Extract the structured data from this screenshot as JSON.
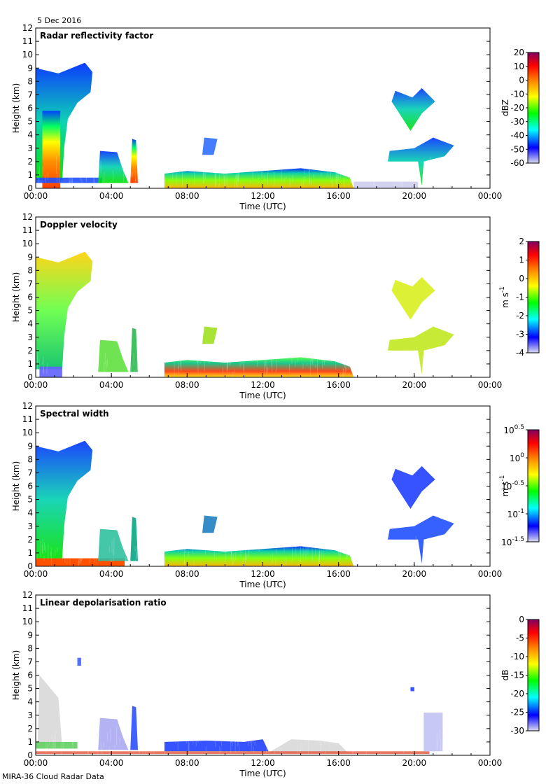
{
  "page": {
    "date": "5 Dec 2016",
    "footer": "MIRA-36 Cloud Radar Data"
  },
  "chart_data": [
    {
      "type": "heatmap",
      "title": "Radar reflectivity factor",
      "xlabel": "Time (UTC)",
      "ylabel": "Height (km)",
      "xlim": [
        "00:00",
        "00:00"
      ],
      "x_ticks": [
        "00:00",
        "04:00",
        "08:00",
        "12:00",
        "16:00",
        "20:00",
        "00:00"
      ],
      "ylim": [
        0,
        12
      ],
      "y_ticks": [
        "0",
        "1",
        "2",
        "3",
        "4",
        "5",
        "6",
        "7",
        "8",
        "9",
        "10",
        "11",
        "12"
      ],
      "colorbar": {
        "unit": "dBZ",
        "min": -60,
        "max": 20,
        "ticks": [
          "20",
          "10",
          "0",
          "-10",
          "-20",
          "-30",
          "-40",
          "-50",
          "-60"
        ]
      },
      "colors": [
        "#dcdcf0",
        "#0000ff",
        "#00ffff",
        "#00ff00",
        "#ffff00",
        "#ff8000",
        "#ff0000",
        "#800060"
      ]
    },
    {
      "type": "heatmap",
      "title": "Doppler velocity",
      "xlabel": "Time (UTC)",
      "ylabel": "Height (km)",
      "xlim": [
        "00:00",
        "00:00"
      ],
      "x_ticks": [
        "00:00",
        "04:00",
        "08:00",
        "12:00",
        "16:00",
        "20:00",
        "00:00"
      ],
      "ylim": [
        0,
        12
      ],
      "y_ticks": [
        "0",
        "1",
        "2",
        "3",
        "4",
        "5",
        "6",
        "7",
        "8",
        "9",
        "10",
        "11",
        "12"
      ],
      "colorbar": {
        "unit": "m s",
        "unit_exp": "-1",
        "min": -4,
        "max": 2,
        "ticks": [
          "2",
          "1",
          "0",
          "-1",
          "-2",
          "-3",
          "-4"
        ]
      },
      "colors": [
        "#dcdcf0",
        "#0000ff",
        "#00ffff",
        "#00ff00",
        "#ffff00",
        "#ff8000",
        "#ff0000",
        "#800060"
      ]
    },
    {
      "type": "heatmap",
      "title": "Spectral width",
      "xlabel": "Time (UTC)",
      "ylabel": "Height (km)",
      "xlim": [
        "00:00",
        "00:00"
      ],
      "x_ticks": [
        "00:00",
        "04:00",
        "08:00",
        "12:00",
        "16:00",
        "20:00",
        "00:00"
      ],
      "ylim": [
        0,
        12
      ],
      "y_ticks": [
        "0",
        "1",
        "2",
        "3",
        "4",
        "5",
        "6",
        "7",
        "8",
        "9",
        "10",
        "11",
        "12"
      ],
      "colorbar": {
        "unit": "m s",
        "unit_exp": "-1",
        "scale": "log",
        "min": -1.5,
        "max": 0.5,
        "ticks": [
          {
            "base": "10",
            "exp": "0.5"
          },
          {
            "base": "10",
            "exp": "0"
          },
          {
            "base": "10",
            "exp": "-0.5"
          },
          {
            "base": "10",
            "exp": "-1"
          },
          {
            "base": "10",
            "exp": "-1.5"
          }
        ]
      },
      "colors": [
        "#dcdcf0",
        "#0000ff",
        "#00ffff",
        "#00ff00",
        "#ffff00",
        "#ff8000",
        "#ff0000",
        "#800060"
      ]
    },
    {
      "type": "heatmap",
      "title": "Linear depolarisation ratio",
      "xlabel": "Time (UTC)",
      "ylabel": "Height (km)",
      "xlim": [
        "00:00",
        "00:00"
      ],
      "x_ticks": [
        "00:00",
        "04:00",
        "08:00",
        "12:00",
        "16:00",
        "20:00",
        "00:00"
      ],
      "ylim": [
        0,
        12
      ],
      "y_ticks": [
        "0",
        "1",
        "2",
        "3",
        "4",
        "5",
        "6",
        "7",
        "8",
        "9",
        "10",
        "11",
        "12"
      ],
      "colorbar": {
        "unit": "dB",
        "min": -30,
        "max": 0,
        "ticks": [
          "0",
          "-5",
          "-10",
          "-15",
          "-20",
          "-25",
          "-30"
        ]
      },
      "colors": [
        "#dcdcf0",
        "#0000ff",
        "#00ffff",
        "#00ff00",
        "#ffff00",
        "#ff8000",
        "#ff0000",
        "#800060"
      ]
    }
  ]
}
